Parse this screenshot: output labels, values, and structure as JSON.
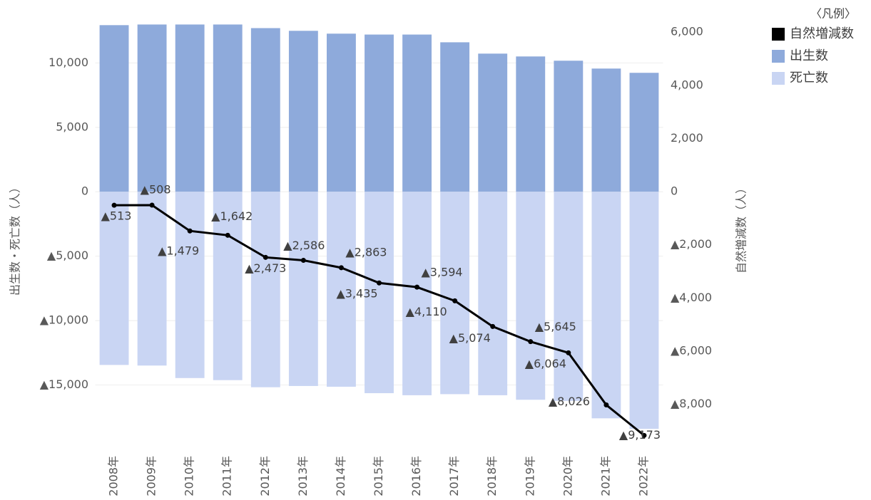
{
  "chart_data": {
    "type": "bar_line",
    "y_label": "出生数・死亡数（人）",
    "y2_label": "自然増減数（人）",
    "legend_title": "〈凡例〉",
    "categories": [
      "2008年",
      "2009年",
      "2010年",
      "2011年",
      "2012年",
      "2013年",
      "2014年",
      "2015年",
      "2016年",
      "2017年",
      "2018年",
      "2019年",
      "2020年",
      "2021年",
      "2022年"
    ],
    "series": [
      {
        "name": "自然増減数",
        "color": "#000000",
        "type": "line",
        "axis": "y2",
        "values": [
          -513,
          -508,
          -1479,
          -1642,
          -2473,
          -2586,
          -2863,
          -3435,
          -3594,
          -4110,
          -5074,
          -5645,
          -6064,
          -8026,
          -9173
        ],
        "value_labels": [
          "▲513",
          "▲508",
          "▲1,479",
          "▲1,642",
          "▲2,473",
          "▲2,586",
          "▲2,863",
          "▲3,435",
          "▲3,594",
          "▲4,110",
          "▲5,074",
          "▲5,645",
          "▲6,064",
          "▲8,026",
          "▲9,173"
        ]
      },
      {
        "name": "出生数",
        "color": "#8eaadb",
        "type": "bar",
        "values": [
          12930,
          12980,
          12980,
          12980,
          12700,
          12490,
          12270,
          12200,
          12200,
          11600,
          10720,
          10500,
          10170,
          9560,
          9230
        ]
      },
      {
        "name": "死亡数",
        "color": "#c9d5f3",
        "type": "bar",
        "values": [
          -13443,
          -13490,
          -14459,
          -14622,
          -15173,
          -15076,
          -15133,
          -15635,
          -15794,
          -15710,
          -15794,
          -16145,
          -16234,
          -17586,
          -18403
        ]
      }
    ],
    "ylim": [
      -20000,
      13500
    ],
    "yticks": [
      {
        "value": -15000,
        "label": "▲15,000"
      },
      {
        "value": -10000,
        "label": "▲10,000"
      },
      {
        "value": -5000,
        "label": "▲5,000"
      },
      0,
      {
        "value": 5000,
        "label": "5,000"
      },
      {
        "value": 10000,
        "label": "10,000"
      }
    ],
    "y2lim": [
      -9700,
      6540
    ],
    "y2ticks": [
      {
        "value": -8000,
        "label": "▲8,000"
      },
      {
        "value": -6000,
        "label": "▲6,000"
      },
      {
        "value": -4000,
        "label": "▲4,000"
      },
      {
        "value": -2000,
        "label": "▲2,000"
      },
      0,
      {
        "value": 2000,
        "label": "2,000"
      },
      {
        "value": 4000,
        "label": "4,000"
      },
      {
        "value": 6000,
        "label": "6,000"
      }
    ],
    "grid": true,
    "legend_position": "top-right"
  }
}
